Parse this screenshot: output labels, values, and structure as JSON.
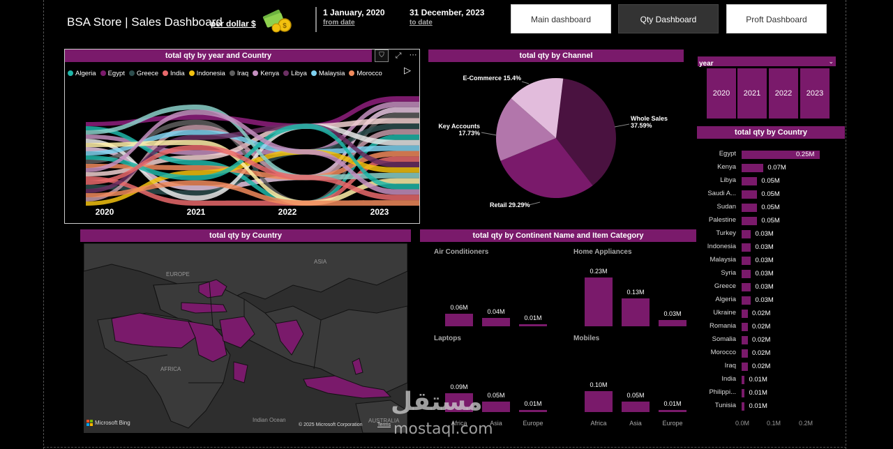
{
  "header": {
    "title": "BSA Store | Sales Dashboard",
    "subtitle": "per dollar $",
    "from_date": "1 January, 2020",
    "from_label": "from date",
    "to_date": "31 December, 2023",
    "to_label": "to date",
    "nav": [
      "Main dashboard",
      "Qty Dashboard",
      "Proft Dashboard"
    ]
  },
  "colors": {
    "accent": "#7a1a6b",
    "background": "#000000",
    "map_land": "#3a3a3a",
    "map_highlight": "#7a1a6b"
  },
  "stream_chart": {
    "title": "total qty by year and Country",
    "legend": [
      {
        "name": "Algeria",
        "color": "#1fb6a8"
      },
      {
        "name": "Egypt",
        "color": "#7a1a6b"
      },
      {
        "name": "Greece",
        "color": "#2d4d4d"
      },
      {
        "name": "India",
        "color": "#e8686b"
      },
      {
        "name": "Indonesia",
        "color": "#f2c10f"
      },
      {
        "name": "Iraq",
        "color": "#5e5e5e"
      },
      {
        "name": "Kenya",
        "color": "#c48fc0"
      },
      {
        "name": "Libya",
        "color": "#6b2f63"
      },
      {
        "name": "Malaysia",
        "color": "#7fd2f0"
      },
      {
        "name": "Morocco",
        "color": "#f08a5c"
      }
    ],
    "years": [
      "2020",
      "2021",
      "2022",
      "2023"
    ]
  },
  "pie_chart": {
    "title": "total qty by Channel",
    "slices": [
      {
        "label": "Whole Sales",
        "pct": "37.59%",
        "value": 37.59,
        "color": "#4a1240"
      },
      {
        "label": "Retail",
        "pct": "29.29%",
        "value": 29.29,
        "color": "#7a1a6b"
      },
      {
        "label": "Key Accounts",
        "pct": "17.73%",
        "value": 17.73,
        "color": "#b276ab"
      },
      {
        "label": "E-Commerce",
        "pct": "15.4%",
        "value": 15.4,
        "color": "#e2bcdc"
      }
    ]
  },
  "year_slicer": {
    "title": "year",
    "years": [
      "2020",
      "2021",
      "2022",
      "2023"
    ]
  },
  "country_bars": {
    "title": "total qty by Country",
    "axis": [
      "0.0M",
      "0.1M",
      "0.2M"
    ],
    "rows": [
      {
        "country": "Egypt",
        "label": "0.25M",
        "value": 0.25
      },
      {
        "country": "Kenya",
        "label": "0.07M",
        "value": 0.07
      },
      {
        "country": "Libya",
        "label": "0.05M",
        "value": 0.05
      },
      {
        "country": "Saudi A...",
        "label": "0.05M",
        "value": 0.05
      },
      {
        "country": "Sudan",
        "label": "0.05M",
        "value": 0.05
      },
      {
        "country": "Palestine",
        "label": "0.05M",
        "value": 0.05
      },
      {
        "country": "Turkey",
        "label": "0.03M",
        "value": 0.03
      },
      {
        "country": "Indonesia",
        "label": "0.03M",
        "value": 0.03
      },
      {
        "country": "Malaysia",
        "label": "0.03M",
        "value": 0.03
      },
      {
        "country": "Syria",
        "label": "0.03M",
        "value": 0.03
      },
      {
        "country": "Greece",
        "label": "0.03M",
        "value": 0.03
      },
      {
        "country": "Algeria",
        "label": "0.03M",
        "value": 0.03
      },
      {
        "country": "Ukraine",
        "label": "0.02M",
        "value": 0.02
      },
      {
        "country": "Romania",
        "label": "0.02M",
        "value": 0.02
      },
      {
        "country": "Somalia",
        "label": "0.02M",
        "value": 0.02
      },
      {
        "country": "Morocco",
        "label": "0.02M",
        "value": 0.02
      },
      {
        "country": "Iraq",
        "label": "0.02M",
        "value": 0.02
      },
      {
        "country": "India",
        "label": "0.01M",
        "value": 0.01
      },
      {
        "country": "Philippi...",
        "label": "0.01M",
        "value": 0.01
      },
      {
        "country": "Tunisia",
        "label": "0.01M",
        "value": 0.01
      }
    ]
  },
  "map": {
    "title": "total qty by Country",
    "labels": {
      "europe": "EUROPE",
      "asia": "ASIA",
      "africa": "AFRICA",
      "indian_ocean": "Indian Ocean",
      "australia": "AUSTRALIA"
    },
    "bing": "Microsoft Bing",
    "copyright": "© 2025 Microsoft Corporation",
    "terms": "Terms"
  },
  "small_multiples": {
    "title": "total qty by Continent Name and Item Category",
    "panels": [
      {
        "name": "Air Conditioners",
        "values": [
          0.06,
          0.04,
          0.01
        ],
        "labels": [
          "0.06M",
          "0.04M",
          "0.01M"
        ],
        "cats": []
      },
      {
        "name": "Home Appliances",
        "values": [
          0.23,
          0.13,
          0.03
        ],
        "labels": [
          "0.23M",
          "0.13M",
          "0.03M"
        ],
        "cats": []
      },
      {
        "name": "Laptops",
        "values": [
          0.09,
          0.05,
          0.01
        ],
        "labels": [
          "0.09M",
          "0.05M",
          "0.01M"
        ],
        "cats": [
          "Africa",
          "Asia",
          "Europe"
        ]
      },
      {
        "name": "Mobiles",
        "values": [
          0.1,
          0.05,
          0.01
        ],
        "labels": [
          "0.10M",
          "0.05M",
          "0.01M"
        ],
        "cats": [
          "Africa",
          "Asia",
          "Europe"
        ]
      }
    ]
  },
  "watermark": {
    "arabic": "مستقل",
    "latin": "mostaql.com"
  }
}
